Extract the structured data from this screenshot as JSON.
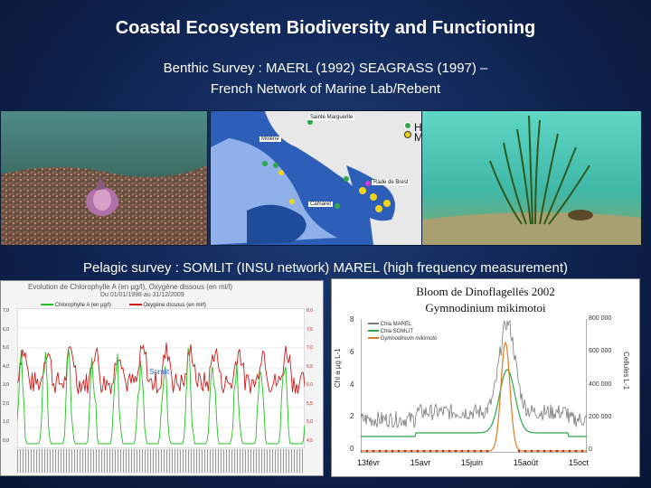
{
  "title": "Coastal Ecosystem Biodiversity and Functioning",
  "subtitle_line1": "Benthic Survey : MAERL (1992) SEAGRASS (1997) –",
  "subtitle_line2": "French Network of Marine Lab/Rebent",
  "map": {
    "labels": {
      "sainte_marguerite": "Sainte Marguerite",
      "molene": "Molène",
      "rade_de_brest": "Rade de Brest",
      "camaret": "Camaret"
    },
    "legend": {
      "herbiers": "Herbiers",
      "maerl": "Maërl"
    },
    "colors": {
      "herbiers": "#2fa84a",
      "maerl": "#f2d21a",
      "water_deep": "#2d5fb8",
      "water_shallow": "#8fb0e8",
      "land": "#e6e6e6"
    }
  },
  "pelagic_heading": "Pelagic survey : SOMLIT (INSU network) MAREL (high frequency measurement)",
  "left_chart": {
    "title": "Evolution de Chlorophylle A (en µg/l), Oxygène dissous (en ml/l)",
    "period": "Du 01/01/1998 au 31/12/2009",
    "legend": [
      "Chlorophylle A (en µg/l)",
      "Oxygène dissous (en ml/l)"
    ],
    "annotation": "Somlit",
    "y_left_ticks": [
      "7,0",
      "6,0",
      "5,0",
      "4,0",
      "3,0",
      "2,0",
      "1,0",
      "0,0"
    ],
    "y_right_ticks": [
      "8,0",
      "7,5",
      "7,0",
      "6,5",
      "6,0",
      "5,5",
      "5,0",
      "4,5"
    ],
    "colors": {
      "chl": "#22c022",
      "oxy": "#d01818"
    }
  },
  "right_chart": {
    "bloom_line1": "Bloom de Dinoflagellés 2002",
    "bloom_line2": "Gymnodinium mikimotoi",
    "legend": [
      "Chla MAREL",
      "Chla SOMLIT",
      "Gymnodinium mikimoto"
    ],
    "ylabel_left": "Chl a µg L-1",
    "ylabel_right": "Cellules L-1",
    "y_left_ticks": [
      "8",
      "6",
      "4",
      "2",
      "0"
    ],
    "y_right_ticks": [
      "800 000",
      "600 000",
      "400 000",
      "200 000",
      "0"
    ],
    "x_ticks": [
      "13févr",
      "15avr",
      "15juin",
      "15août",
      "15oct"
    ],
    "colors": {
      "marel": "#7a7a7a",
      "somlit": "#2aa84a",
      "gymno": "#e07a22"
    }
  }
}
